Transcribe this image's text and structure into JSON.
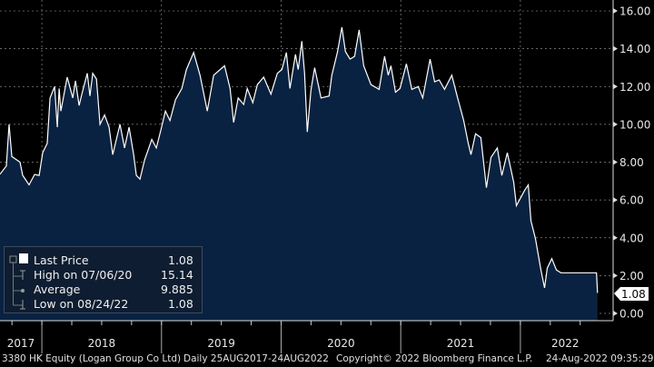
{
  "chart_data": {
    "type": "area",
    "title": "3380 HK Equity (Logan Group Co Ltd)",
    "ylim": [
      0,
      16
    ],
    "yticks": [
      "0.00",
      "2.00",
      "4.00",
      "6.00",
      "8.00",
      "10.00",
      "12.00",
      "14.00",
      "16.00"
    ],
    "ytick_values": [
      0,
      2,
      4,
      6,
      8,
      10,
      12,
      14,
      16
    ],
    "xlim": [
      2017.65,
      2022.75
    ],
    "xtick_labels": [
      "2017",
      "2018",
      "2019",
      "2020",
      "2021",
      "2022"
    ],
    "year_boundaries": [
      2018,
      2019,
      2020,
      2021,
      2022
    ],
    "grid": true,
    "axis_side": "right",
    "series": [
      {
        "name": "Last Price",
        "x": [
          2017.65,
          2017.703,
          2017.726,
          2017.749,
          2017.817,
          2017.84,
          2017.893,
          2017.939,
          2017.977,
          2018.007,
          2018.045,
          2018.068,
          2018.106,
          2018.129,
          2018.144,
          2018.159,
          2018.212,
          2018.258,
          2018.281,
          2018.311,
          2018.334,
          2018.38,
          2018.402,
          2018.425,
          2018.456,
          2018.486,
          2018.524,
          2018.562,
          2018.592,
          2018.623,
          2018.653,
          2018.691,
          2018.729,
          2018.767,
          2018.79,
          2018.82,
          2018.858,
          2018.919,
          2018.957,
          2018.995,
          2019.033,
          2019.071,
          2019.117,
          2019.17,
          2019.208,
          2019.269,
          2019.322,
          2019.383,
          2019.436,
          2019.527,
          2019.573,
          2019.603,
          2019.641,
          2019.687,
          2019.717,
          2019.763,
          2019.801,
          2019.854,
          2019.915,
          2019.968,
          2020.006,
          2020.044,
          2020.074,
          2020.12,
          2020.143,
          2020.173,
          2020.196,
          2020.219,
          2020.249,
          2020.28,
          2020.333,
          2020.401,
          2020.424,
          2020.47,
          2020.508,
          2020.538,
          2020.576,
          2020.614,
          2020.652,
          2020.69,
          2020.751,
          2020.819,
          2020.865,
          2020.895,
          2020.918,
          2020.956,
          2020.994,
          2021.047,
          2021.093,
          2021.146,
          2021.184,
          2021.245,
          2021.283,
          2021.321,
          2021.366,
          2021.427,
          2021.473,
          2021.526,
          2021.564,
          2021.587,
          2021.625,
          2021.67,
          2021.716,
          2021.754,
          2021.807,
          2021.845,
          2021.891,
          2021.944,
          2021.967,
          2022.035,
          2022.066,
          2022.088,
          2022.126,
          2022.172,
          2022.202,
          2022.225,
          2022.263,
          2022.301,
          2022.339,
          2022.636,
          2022.645
        ],
        "y": [
          7.36,
          7.8,
          10.0,
          8.3,
          8.0,
          7.3,
          6.8,
          7.35,
          7.3,
          8.5,
          9.0,
          11.4,
          12.0,
          9.85,
          11.9,
          10.7,
          12.5,
          11.4,
          12.3,
          11.0,
          11.6,
          12.7,
          11.5,
          12.7,
          12.4,
          10.0,
          10.5,
          9.85,
          8.4,
          9.2,
          10.0,
          8.75,
          9.85,
          8.4,
          7.3,
          7.1,
          8.1,
          9.2,
          8.75,
          9.7,
          10.7,
          10.2,
          11.3,
          11.9,
          12.9,
          13.8,
          12.6,
          10.7,
          12.6,
          13.1,
          11.9,
          10.1,
          11.4,
          11.05,
          11.9,
          11.15,
          12.1,
          12.5,
          11.6,
          12.7,
          12.9,
          13.8,
          11.9,
          13.7,
          12.9,
          14.4,
          12.7,
          9.6,
          11.8,
          13.0,
          11.4,
          11.5,
          12.6,
          13.8,
          15.14,
          13.85,
          13.45,
          13.6,
          15.0,
          13.1,
          12.1,
          11.85,
          13.6,
          12.6,
          13.1,
          11.7,
          11.9,
          13.2,
          11.85,
          12.0,
          11.4,
          13.45,
          12.25,
          12.35,
          11.85,
          12.6,
          11.45,
          10.2,
          9.0,
          8.4,
          9.5,
          9.3,
          6.65,
          8.25,
          8.75,
          7.3,
          8.5,
          6.95,
          5.7,
          6.5,
          6.8,
          4.9,
          3.95,
          2.3,
          1.35,
          2.4,
          2.9,
          2.3,
          2.15,
          2.15,
          1.08
        ]
      }
    ],
    "last_price_tag": "1.08",
    "legend": {
      "placement": "bottom-left",
      "rows": [
        {
          "label": "Last Price",
          "value": "1.08"
        },
        {
          "label": "High on 07/06/20",
          "value": "15.14"
        },
        {
          "label": "Average",
          "value": "9.885"
        },
        {
          "label": "Low on 08/24/22",
          "value": "1.08"
        }
      ]
    },
    "colors": {
      "line": "#ffffff",
      "fill": "#0a2241",
      "grid": "#8a8a8a",
      "legend_bg": "#0e1d31"
    }
  },
  "footer": {
    "ticker": "3380 HK Equity (Logan Group Co Ltd)",
    "range": "Daily 25AUG2017-24AUG2022",
    "copyright": "Copyright© 2022 Bloomberg Finance L.P.",
    "timestamp": "24-Aug-2022 09:35:29"
  }
}
